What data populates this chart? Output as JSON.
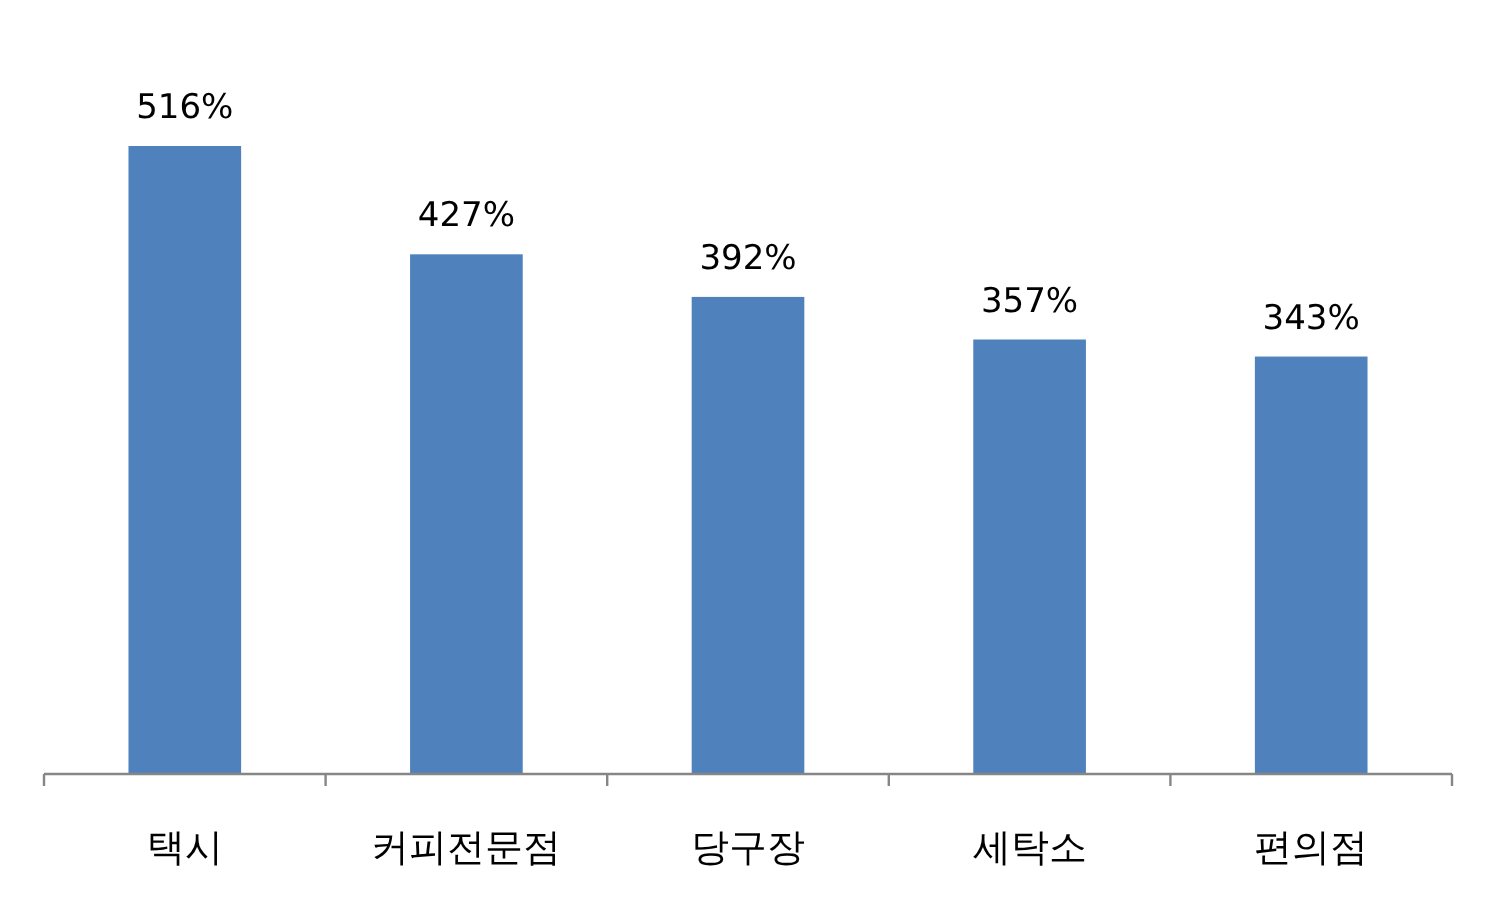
{
  "chart_data": {
    "type": "bar",
    "categories": [
      "택시",
      "커피전문점",
      "당구장",
      "세탁소",
      "편의점"
    ],
    "values": [
      516,
      427,
      392,
      357,
      343
    ],
    "value_labels": [
      "516%",
      "427%",
      "392%",
      "357%",
      "343%"
    ],
    "color": "#4f81bd"
  }
}
